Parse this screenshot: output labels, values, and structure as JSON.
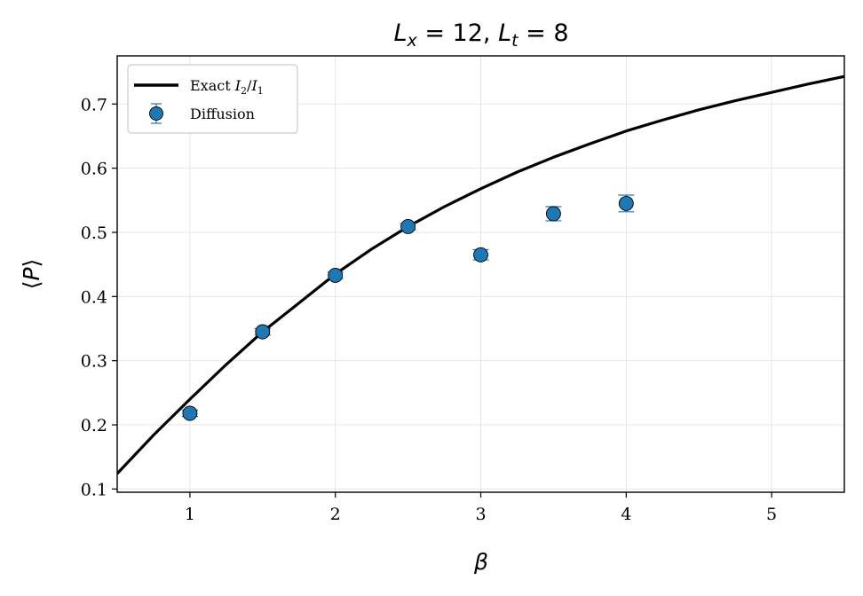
{
  "chart_data": {
    "type": "line",
    "title": "L_x = 12,  L_t = 8",
    "title_parts": {
      "a": "L",
      "a_sub": "x",
      "a_eq": " = 12,  ",
      "b": "L",
      "b_sub": "t",
      "b_eq": " = 8"
    },
    "xlabel": "β",
    "ylabel": "⟨P⟩",
    "xlim": [
      0.5,
      5.5
    ],
    "ylim": [
      0.095,
      0.775
    ],
    "xticks": [
      1,
      2,
      3,
      4,
      5
    ],
    "yticks": [
      0.1,
      0.2,
      0.3,
      0.4,
      0.5,
      0.6,
      0.7
    ],
    "xtick_labels": [
      "1",
      "2",
      "3",
      "4",
      "5"
    ],
    "ytick_labels": [
      "0.1",
      "0.2",
      "0.3",
      "0.4",
      "0.5",
      "0.6",
      "0.7"
    ],
    "grid": true,
    "legend_position": "top-left",
    "series": [
      {
        "name": "Exact I₂/I₁",
        "legend_parts": {
          "text": "Exact ",
          "i2": "I",
          "i2_sub": "2",
          "slash": "/",
          "i1": "I",
          "i1_sub": "1"
        },
        "kind": "line",
        "color": "#000000",
        "x": [
          0.5,
          0.75,
          1.0,
          1.25,
          1.5,
          1.75,
          2.0,
          2.25,
          2.5,
          2.75,
          3.0,
          3.25,
          3.5,
          3.75,
          4.0,
          4.25,
          4.5,
          4.75,
          5.0,
          5.25,
          5.5
        ],
        "y": [
          0.124,
          0.184,
          0.24,
          0.294,
          0.345,
          0.39,
          0.435,
          0.474,
          0.509,
          0.54,
          0.568,
          0.594,
          0.617,
          0.638,
          0.658,
          0.675,
          0.691,
          0.705,
          0.718,
          0.731,
          0.743
        ]
      },
      {
        "name": "Diffusion",
        "kind": "errorbar",
        "color": "#1f77b4",
        "x": [
          1.0,
          1.5,
          2.0,
          2.5,
          3.0,
          3.5,
          4.0
        ],
        "y": [
          0.218,
          0.345,
          0.433,
          0.509,
          0.465,
          0.529,
          0.545
        ],
        "yerr": [
          0.005,
          0.005,
          0.005,
          0.005,
          0.008,
          0.011,
          0.013
        ]
      }
    ]
  }
}
